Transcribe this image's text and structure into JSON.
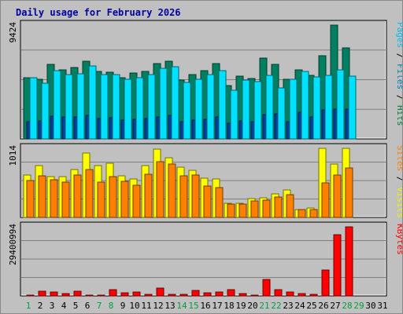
{
  "chart_data": {
    "type": "bar",
    "title": "Daily usage for February 2026",
    "days": [
      "1",
      "2",
      "3",
      "4",
      "5",
      "6",
      "7",
      "8",
      "9",
      "10",
      "11",
      "12",
      "13",
      "14",
      "15",
      "16",
      "17",
      "18",
      "19",
      "20",
      "21",
      "22",
      "23",
      "24",
      "25",
      "26",
      "27",
      "28",
      "29",
      "30",
      "31"
    ],
    "weekend_days": [
      "1",
      "7",
      "8",
      "14",
      "15",
      "21",
      "22",
      "28",
      "29"
    ],
    "panels": [
      {
        "name": "hits_files_pages",
        "scale_label": "9424",
        "ylim": [
          0,
          9424
        ],
        "side_labels": [
          {
            "text": "Pages",
            "color": "#00c0f0"
          },
          {
            "text": " / ",
            "color": "#000000"
          },
          {
            "text": "Files",
            "color": "#0080c0"
          },
          {
            "text": " / ",
            "color": "#000000"
          },
          {
            "text": "Hits",
            "color": "#008040"
          }
        ],
        "series": [
          {
            "name": "Hits",
            "color": "#008060",
            "values": [
              5100,
              4950,
              6200,
              5700,
              5900,
              6450,
              5600,
              5550,
              5100,
              5450,
              5600,
              6250,
              6450,
              4900,
              5300,
              5650,
              6250,
              4450,
              5200,
              5000,
              6700,
              6200,
              4950,
              5750,
              5250,
              6900,
              9424,
              7550,
              0,
              0,
              0
            ]
          },
          {
            "name": "Files",
            "color": "#0040a0",
            "values": [
              1450,
              1500,
              1900,
              1800,
              1800,
              1950,
              1700,
              1750,
              1550,
              1650,
              1700,
              1800,
              1950,
              1450,
              1550,
              1650,
              1800,
              1300,
              1500,
              1450,
              2000,
              2100,
              1450,
              2200,
              1850,
              2400,
              2450,
              2500,
              0,
              0,
              0
            ]
          },
          {
            "name": "Pages",
            "color": "#00e0ff",
            "values": [
              5050,
              4600,
              5650,
              5300,
              5400,
              6050,
              5300,
              5300,
              4950,
              5050,
              5300,
              5850,
              6000,
              4700,
              4950,
              5300,
              5650,
              4050,
              4850,
              4750,
              5250,
              4250,
              4950,
              5600,
              5150,
              5250,
              5700,
              5200,
              0,
              0,
              0
            ]
          }
        ]
      },
      {
        "name": "visits_sites",
        "scale_label": "1014",
        "ylim": [
          0,
          1014
        ],
        "side_labels": [
          {
            "text": "Sites",
            "color": "#ff8000"
          },
          {
            "text": " / ",
            "color": "#000000"
          },
          {
            "text": "Visits",
            "color": "#f0f000"
          }
        ],
        "series": [
          {
            "name": "Visits",
            "color": "#ffff00",
            "values": [
              620,
              760,
              600,
              600,
              700,
              940,
              760,
              790,
              610,
              560,
              760,
              1000,
              880,
              740,
              690,
              580,
              560,
              210,
              210,
              280,
              290,
              350,
              400,
              120,
              140,
              1014,
              780,
              1014,
              0,
              0,
              0
            ]
          },
          {
            "name": "Sites",
            "color": "#ff8000",
            "values": [
              540,
              610,
              550,
              520,
              620,
              700,
              520,
              600,
              530,
              470,
              630,
              820,
              780,
              610,
              620,
              460,
              440,
              200,
              200,
              240,
              250,
              300,
              330,
              120,
              120,
              510,
              620,
              730,
              0,
              0,
              0
            ]
          }
        ]
      },
      {
        "name": "kbytes",
        "scale_label": "29400994",
        "ylim": [
          0,
          29400994
        ],
        "side_labels": [
          {
            "text": "KBytes",
            "color": "#ff0000"
          }
        ],
        "series": [
          {
            "name": "KBytes",
            "color": "#ff0000",
            "values": [
              500000,
              2000000,
              1800000,
              900000,
              2000000,
              300000,
              500000,
              2800000,
              1500000,
              1800000,
              600000,
              3200000,
              800000,
              700000,
              2300000,
              1500000,
              1700000,
              2700000,
              900000,
              500000,
              6900000,
              2700000,
              1800000,
              1000000,
              800000,
              11000000,
              26000000,
              29400994,
              0,
              0,
              0
            ]
          }
        ]
      }
    ]
  }
}
